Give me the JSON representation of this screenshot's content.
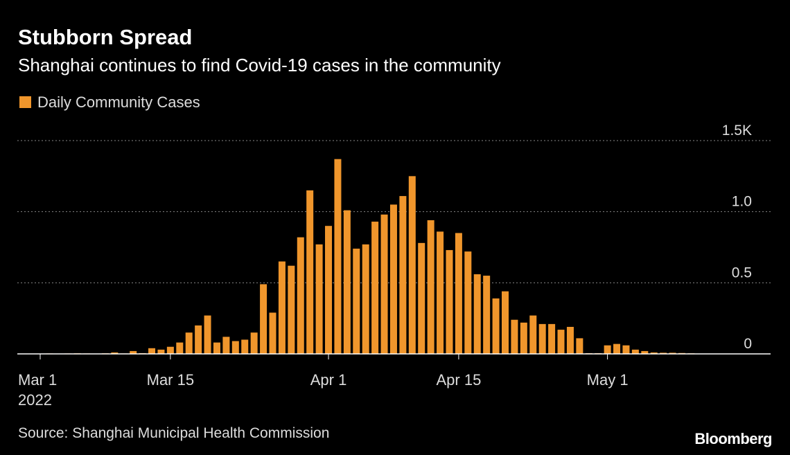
{
  "chart_data": {
    "type": "bar",
    "title": "Stubborn Spread",
    "subtitle": "Shanghai continues to find Covid-19 cases in the community",
    "categories": [
      "Mar 1",
      null,
      null,
      null,
      null,
      null,
      null,
      null,
      null,
      null,
      null,
      null,
      null,
      null,
      "Mar 15",
      null,
      null,
      null,
      null,
      null,
      null,
      null,
      null,
      null,
      null,
      null,
      null,
      null,
      null,
      null,
      null,
      "Apr 1",
      null,
      null,
      null,
      null,
      null,
      null,
      null,
      null,
      null,
      null,
      null,
      null,
      null,
      "Apr 15",
      null,
      null,
      null,
      null,
      null,
      null,
      null,
      null,
      null,
      null,
      null,
      null,
      null,
      null,
      null,
      "May 1",
      null,
      null,
      null,
      null,
      null,
      null,
      null,
      null,
      null
    ],
    "x_sublabel": "2022",
    "series": [
      {
        "name": "Daily Community Cases",
        "color": "#f0962c",
        "values": [
          0.002,
          0.003,
          0.002,
          0.003,
          0.004,
          0.003,
          0.002,
          0.004,
          0.01,
          0.003,
          0.02,
          0.005,
          0.04,
          0.03,
          0.05,
          0.08,
          0.15,
          0.2,
          0.27,
          0.08,
          0.12,
          0.09,
          0.1,
          0.15,
          0.49,
          0.29,
          0.65,
          0.62,
          0.82,
          1.15,
          0.77,
          0.9,
          1.37,
          1.01,
          0.74,
          0.77,
          0.93,
          0.98,
          1.05,
          1.11,
          1.25,
          0.78,
          0.94,
          0.86,
          0.73,
          0.85,
          0.72,
          0.56,
          0.55,
          0.39,
          0.44,
          0.24,
          0.22,
          0.27,
          0.21,
          0.21,
          0.17,
          0.19,
          0.11,
          0.005,
          0.005,
          0.06,
          0.07,
          0.06,
          0.03,
          0.02,
          0.01,
          0.008,
          0.008,
          0.006,
          0.004
        ]
      }
    ],
    "ylim": [
      0,
      1.5
    ],
    "yticks": [
      0,
      0.5,
      {
        "value": 1,
        "label": "1.0"
      },
      {
        "value": 1.5,
        "label": "1.5K"
      }
    ],
    "grid": true,
    "source": "Source: Shanghai Municipal Health Commission",
    "logo": "Bloomberg"
  }
}
